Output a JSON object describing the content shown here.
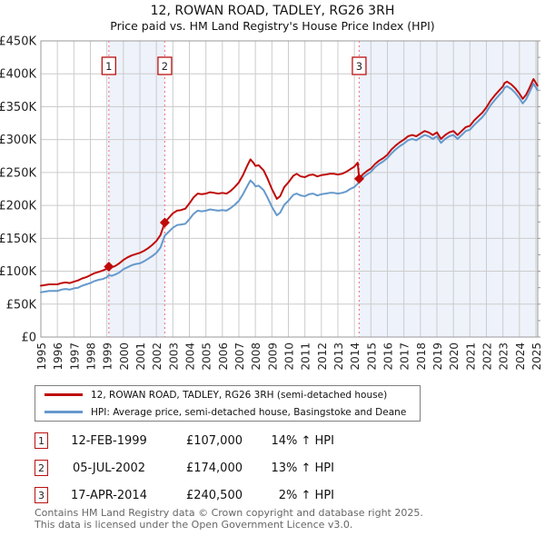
{
  "page": {
    "title_line1": "12, ROWAN ROAD, TADLEY, RG26 3RH",
    "title_line2": "Price paid vs. HM Land Registry's House Price Index (HPI)"
  },
  "chart_data": {
    "type": "line",
    "title": "12, ROWAN ROAD, TADLEY, RG26 3RH",
    "subtitle": "Price paid vs. HM Land Registry's House Price Index (HPI)",
    "x_axis": {
      "range": [
        1995,
        2025.13
      ],
      "ticks": [
        1995,
        1996,
        1997,
        1998,
        1999,
        2000,
        2001,
        2002,
        2003,
        2004,
        2005,
        2006,
        2007,
        2008,
        2009,
        2010,
        2011,
        2012,
        2013,
        2014,
        2015,
        2016,
        2017,
        2018,
        2019,
        2020,
        2021,
        2022,
        2023,
        2024,
        2025
      ],
      "tick_rotation": -90
    },
    "y_axis": {
      "range_gbp_k": [
        0,
        450
      ],
      "tick_step_k": 50,
      "tick_labels": [
        "£0",
        "£50K",
        "£100K",
        "£150K",
        "£200K",
        "£250K",
        "£300K",
        "£350K",
        "£400K",
        "£450K"
      ]
    },
    "grid": true,
    "legend_position": "bottom",
    "shaded_periods": [
      [
        1999.12,
        2002.51
      ],
      [
        2014.29,
        2025.13
      ]
    ],
    "sales": [
      {
        "num": "1",
        "year": 1999.12,
        "date": "12-FEB-1999",
        "price_gbp": 107000,
        "vs_hpi": "14% ↑ HPI"
      },
      {
        "num": "2",
        "year": 2002.51,
        "date": "05-JUL-2002",
        "price_gbp": 174000,
        "vs_hpi": "13% ↑ HPI"
      },
      {
        "num": "3",
        "year": 2014.29,
        "date": "17-APR-2014",
        "price_gbp": 240500,
        "vs_hpi": "2% ↑ HPI"
      }
    ],
    "series": [
      {
        "name": "12, ROWAN ROAD, TADLEY, RG26 3RH (semi-detached house)",
        "color": "#c00a0a",
        "points_year_gbpk": [
          [
            1995.0,
            78
          ],
          [
            1995.25,
            79
          ],
          [
            1995.5,
            80
          ],
          [
            1995.75,
            80
          ],
          [
            1996.0,
            80
          ],
          [
            1996.25,
            82
          ],
          [
            1996.5,
            83
          ],
          [
            1996.75,
            82
          ],
          [
            1997.0,
            84
          ],
          [
            1997.25,
            86
          ],
          [
            1997.5,
            89
          ],
          [
            1997.75,
            91
          ],
          [
            1998.0,
            94
          ],
          [
            1998.25,
            97
          ],
          [
            1998.5,
            99
          ],
          [
            1998.75,
            101
          ],
          [
            1999.0,
            104
          ],
          [
            1999.12,
            107
          ],
          [
            1999.3,
            106
          ],
          [
            1999.5,
            108
          ],
          [
            1999.75,
            112
          ],
          [
            2000.0,
            117
          ],
          [
            2000.25,
            121
          ],
          [
            2000.5,
            124
          ],
          [
            2000.75,
            126
          ],
          [
            2001.0,
            128
          ],
          [
            2001.25,
            131
          ],
          [
            2001.5,
            135
          ],
          [
            2001.75,
            140
          ],
          [
            2002.0,
            146
          ],
          [
            2002.25,
            155
          ],
          [
            2002.51,
            174
          ],
          [
            2002.75,
            181
          ],
          [
            2003.0,
            188
          ],
          [
            2003.25,
            192
          ],
          [
            2003.5,
            193
          ],
          [
            2003.75,
            195
          ],
          [
            2004.0,
            203
          ],
          [
            2004.25,
            212
          ],
          [
            2004.5,
            218
          ],
          [
            2004.75,
            217
          ],
          [
            2005.0,
            218
          ],
          [
            2005.25,
            220
          ],
          [
            2005.5,
            219
          ],
          [
            2005.75,
            218
          ],
          [
            2006.0,
            219
          ],
          [
            2006.25,
            218
          ],
          [
            2006.5,
            222
          ],
          [
            2006.75,
            228
          ],
          [
            2007.0,
            235
          ],
          [
            2007.25,
            246
          ],
          [
            2007.5,
            260
          ],
          [
            2007.7,
            270
          ],
          [
            2007.9,
            264
          ],
          [
            2008.0,
            260
          ],
          [
            2008.2,
            261
          ],
          [
            2008.5,
            253
          ],
          [
            2008.75,
            240
          ],
          [
            2009.0,
            225
          ],
          [
            2009.3,
            210
          ],
          [
            2009.5,
            214
          ],
          [
            2009.75,
            228
          ],
          [
            2010.0,
            235
          ],
          [
            2010.3,
            245
          ],
          [
            2010.5,
            248
          ],
          [
            2010.75,
            244
          ],
          [
            2011.0,
            243
          ],
          [
            2011.25,
            246
          ],
          [
            2011.5,
            247
          ],
          [
            2011.75,
            244
          ],
          [
            2012.0,
            246
          ],
          [
            2012.25,
            247
          ],
          [
            2012.5,
            248
          ],
          [
            2012.75,
            248
          ],
          [
            2013.0,
            247
          ],
          [
            2013.25,
            248
          ],
          [
            2013.5,
            251
          ],
          [
            2013.75,
            255
          ],
          [
            2014.0,
            259
          ],
          [
            2014.2,
            265
          ],
          [
            2014.29,
            240.5
          ],
          [
            2014.5,
            247
          ],
          [
            2014.75,
            252
          ],
          [
            2015.0,
            256
          ],
          [
            2015.25,
            263
          ],
          [
            2015.5,
            268
          ],
          [
            2015.75,
            272
          ],
          [
            2016.0,
            277
          ],
          [
            2016.25,
            285
          ],
          [
            2016.5,
            291
          ],
          [
            2016.75,
            296
          ],
          [
            2017.0,
            300
          ],
          [
            2017.25,
            305
          ],
          [
            2017.5,
            307
          ],
          [
            2017.75,
            305
          ],
          [
            2018.0,
            309
          ],
          [
            2018.25,
            313
          ],
          [
            2018.5,
            311
          ],
          [
            2018.75,
            307
          ],
          [
            2019.0,
            311
          ],
          [
            2019.25,
            301
          ],
          [
            2019.5,
            307
          ],
          [
            2019.75,
            311
          ],
          [
            2020.0,
            313
          ],
          [
            2020.25,
            307
          ],
          [
            2020.5,
            313
          ],
          [
            2020.75,
            319
          ],
          [
            2021.0,
            321
          ],
          [
            2021.25,
            329
          ],
          [
            2021.5,
            335
          ],
          [
            2021.75,
            341
          ],
          [
            2022.0,
            349
          ],
          [
            2022.25,
            359
          ],
          [
            2022.5,
            367
          ],
          [
            2022.75,
            374
          ],
          [
            2023.0,
            381
          ],
          [
            2023.1,
            386
          ],
          [
            2023.25,
            388
          ],
          [
            2023.5,
            384
          ],
          [
            2023.75,
            378
          ],
          [
            2024.0,
            370
          ],
          [
            2024.2,
            362
          ],
          [
            2024.4,
            368
          ],
          [
            2024.6,
            378
          ],
          [
            2024.85,
            392
          ],
          [
            2025.0,
            386
          ],
          [
            2025.1,
            382
          ]
        ]
      },
      {
        "name": "HPI: Average price, semi-detached house, Basingstoke and Deane",
        "color": "#6699cc",
        "points_year_gbpk": [
          [
            1995.0,
            68
          ],
          [
            1995.25,
            69
          ],
          [
            1995.5,
            70
          ],
          [
            1995.75,
            70
          ],
          [
            1996.0,
            70
          ],
          [
            1996.25,
            72
          ],
          [
            1996.5,
            73
          ],
          [
            1996.75,
            72
          ],
          [
            1997.0,
            74
          ],
          [
            1997.25,
            75
          ],
          [
            1997.5,
            78
          ],
          [
            1997.75,
            80
          ],
          [
            1998.0,
            82
          ],
          [
            1998.25,
            85
          ],
          [
            1998.5,
            87
          ],
          [
            1998.75,
            88
          ],
          [
            1999.0,
            91
          ],
          [
            1999.12,
            94
          ],
          [
            1999.3,
            93
          ],
          [
            1999.5,
            95
          ],
          [
            1999.75,
            98
          ],
          [
            2000.0,
            103
          ],
          [
            2000.25,
            106
          ],
          [
            2000.5,
            109
          ],
          [
            2000.75,
            111
          ],
          [
            2001.0,
            112
          ],
          [
            2001.25,
            115
          ],
          [
            2001.5,
            119
          ],
          [
            2001.75,
            123
          ],
          [
            2002.0,
            128
          ],
          [
            2002.25,
            136
          ],
          [
            2002.51,
            154
          ],
          [
            2002.75,
            160
          ],
          [
            2003.0,
            166
          ],
          [
            2003.25,
            170
          ],
          [
            2003.5,
            171
          ],
          [
            2003.75,
            172
          ],
          [
            2004.0,
            179
          ],
          [
            2004.25,
            187
          ],
          [
            2004.5,
            192
          ],
          [
            2004.75,
            191
          ],
          [
            2005.0,
            192
          ],
          [
            2005.25,
            194
          ],
          [
            2005.5,
            193
          ],
          [
            2005.75,
            192
          ],
          [
            2006.0,
            193
          ],
          [
            2006.25,
            192
          ],
          [
            2006.5,
            196
          ],
          [
            2006.75,
            201
          ],
          [
            2007.0,
            207
          ],
          [
            2007.25,
            217
          ],
          [
            2007.5,
            229
          ],
          [
            2007.7,
            238
          ],
          [
            2007.9,
            233
          ],
          [
            2008.0,
            229
          ],
          [
            2008.2,
            230
          ],
          [
            2008.5,
            223
          ],
          [
            2008.75,
            211
          ],
          [
            2009.0,
            198
          ],
          [
            2009.3,
            185
          ],
          [
            2009.5,
            189
          ],
          [
            2009.75,
            201
          ],
          [
            2010.0,
            207
          ],
          [
            2010.3,
            216
          ],
          [
            2010.5,
            218
          ],
          [
            2010.75,
            215
          ],
          [
            2011.0,
            214
          ],
          [
            2011.25,
            217
          ],
          [
            2011.5,
            218
          ],
          [
            2011.75,
            215
          ],
          [
            2012.0,
            217
          ],
          [
            2012.25,
            218
          ],
          [
            2012.5,
            219
          ],
          [
            2012.75,
            219
          ],
          [
            2013.0,
            218
          ],
          [
            2013.25,
            219
          ],
          [
            2013.5,
            221
          ],
          [
            2013.75,
            225
          ],
          [
            2014.0,
            228
          ],
          [
            2014.2,
            233
          ],
          [
            2014.29,
            235.8
          ],
          [
            2014.5,
            242
          ],
          [
            2014.75,
            247
          ],
          [
            2015.0,
            251
          ],
          [
            2015.25,
            258
          ],
          [
            2015.5,
            263
          ],
          [
            2015.75,
            267
          ],
          [
            2016.0,
            272
          ],
          [
            2016.25,
            279
          ],
          [
            2016.5,
            285
          ],
          [
            2016.75,
            290
          ],
          [
            2017.0,
            294
          ],
          [
            2017.25,
            299
          ],
          [
            2017.5,
            301
          ],
          [
            2017.75,
            299
          ],
          [
            2018.0,
            303
          ],
          [
            2018.25,
            307
          ],
          [
            2018.5,
            305
          ],
          [
            2018.75,
            301
          ],
          [
            2019.0,
            305
          ],
          [
            2019.25,
            295
          ],
          [
            2019.5,
            301
          ],
          [
            2019.75,
            305
          ],
          [
            2020.0,
            307
          ],
          [
            2020.25,
            301
          ],
          [
            2020.5,
            307
          ],
          [
            2020.75,
            313
          ],
          [
            2021.0,
            315
          ],
          [
            2021.25,
            322
          ],
          [
            2021.5,
            328
          ],
          [
            2021.75,
            334
          ],
          [
            2022.0,
            342
          ],
          [
            2022.25,
            352
          ],
          [
            2022.5,
            360
          ],
          [
            2022.75,
            367
          ],
          [
            2023.0,
            374
          ],
          [
            2023.1,
            379
          ],
          [
            2023.25,
            381
          ],
          [
            2023.5,
            377
          ],
          [
            2023.75,
            371
          ],
          [
            2024.0,
            363
          ],
          [
            2024.2,
            355
          ],
          [
            2024.4,
            361
          ],
          [
            2024.6,
            371
          ],
          [
            2024.85,
            385
          ],
          [
            2025.0,
            379
          ],
          [
            2025.1,
            375
          ]
        ]
      }
    ],
    "colors": {
      "shade": "#eef2fa",
      "grid": "#cccccc",
      "border": "#999999",
      "sale_line": "#ee8090",
      "sale_box_border": "#bb1111",
      "axis_text": "#222222"
    }
  },
  "legend": {
    "items": [
      {
        "label": "12, ROWAN ROAD, TADLEY, RG26 3RH (semi-detached house)",
        "color": "#c00a0a"
      },
      {
        "label": "HPI: Average price, semi-detached house, Basingstoke and Deane",
        "color": "#6699cc"
      }
    ]
  },
  "table": {
    "rows": [
      {
        "num": "1",
        "date": "12-FEB-1999",
        "price": "£107,000",
        "hpi": "14% ↑ HPI"
      },
      {
        "num": "2",
        "date": "05-JUL-2002",
        "price": "£174,000",
        "hpi": "13% ↑ HPI"
      },
      {
        "num": "3",
        "date": "17-APR-2014",
        "price": "£240,500",
        "hpi": "2% ↑ HPI"
      }
    ]
  },
  "footer": {
    "line1": "Contains HM Land Registry data © Crown copyright and database right 2025.",
    "line2": "This data is licensed under the Open Government Licence v3.0."
  }
}
